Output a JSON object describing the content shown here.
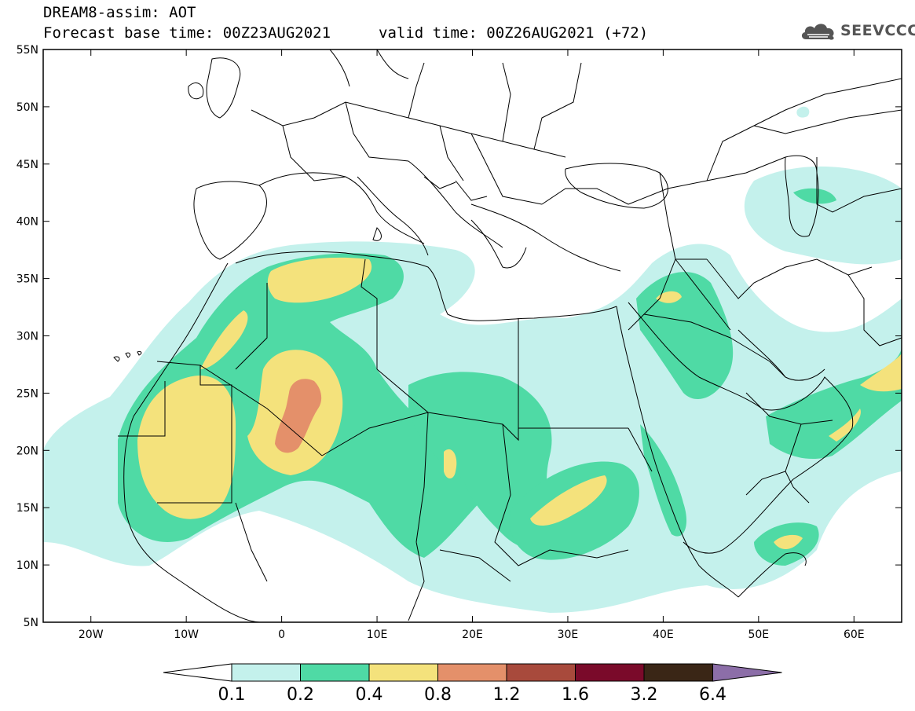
{
  "header": {
    "title": "DREAM8-assim: AOT",
    "base_time": "Forecast base time: 00Z23AUG2021",
    "valid_time": "valid time: 00Z26AUG2021 (+72)"
  },
  "logo": {
    "text": "SEEVCCC",
    "icon": "cloud-icon"
  },
  "axes": {
    "lon_ticks": [
      "20W",
      "10W",
      "0",
      "10E",
      "20E",
      "30E",
      "40E",
      "50E",
      "60E"
    ],
    "lat_ticks": [
      "55N",
      "50N",
      "45N",
      "40N",
      "35N",
      "30N",
      "25N",
      "20N",
      "15N",
      "10N",
      "5N"
    ],
    "lon_range": [
      -25,
      65
    ],
    "lat_range": [
      5,
      55
    ]
  },
  "colorbar": {
    "levels": [
      "0.1",
      "0.2",
      "0.4",
      "0.8",
      "1.2",
      "1.6",
      "3.2",
      "6.4"
    ],
    "colors": [
      "#ffffff",
      "#c4f1ec",
      "#4fdaa5",
      "#f4e27c",
      "#e4906a",
      "#a84a3c",
      "#7a0a2a",
      "#3a2616",
      "#8c6ea8"
    ]
  }
}
